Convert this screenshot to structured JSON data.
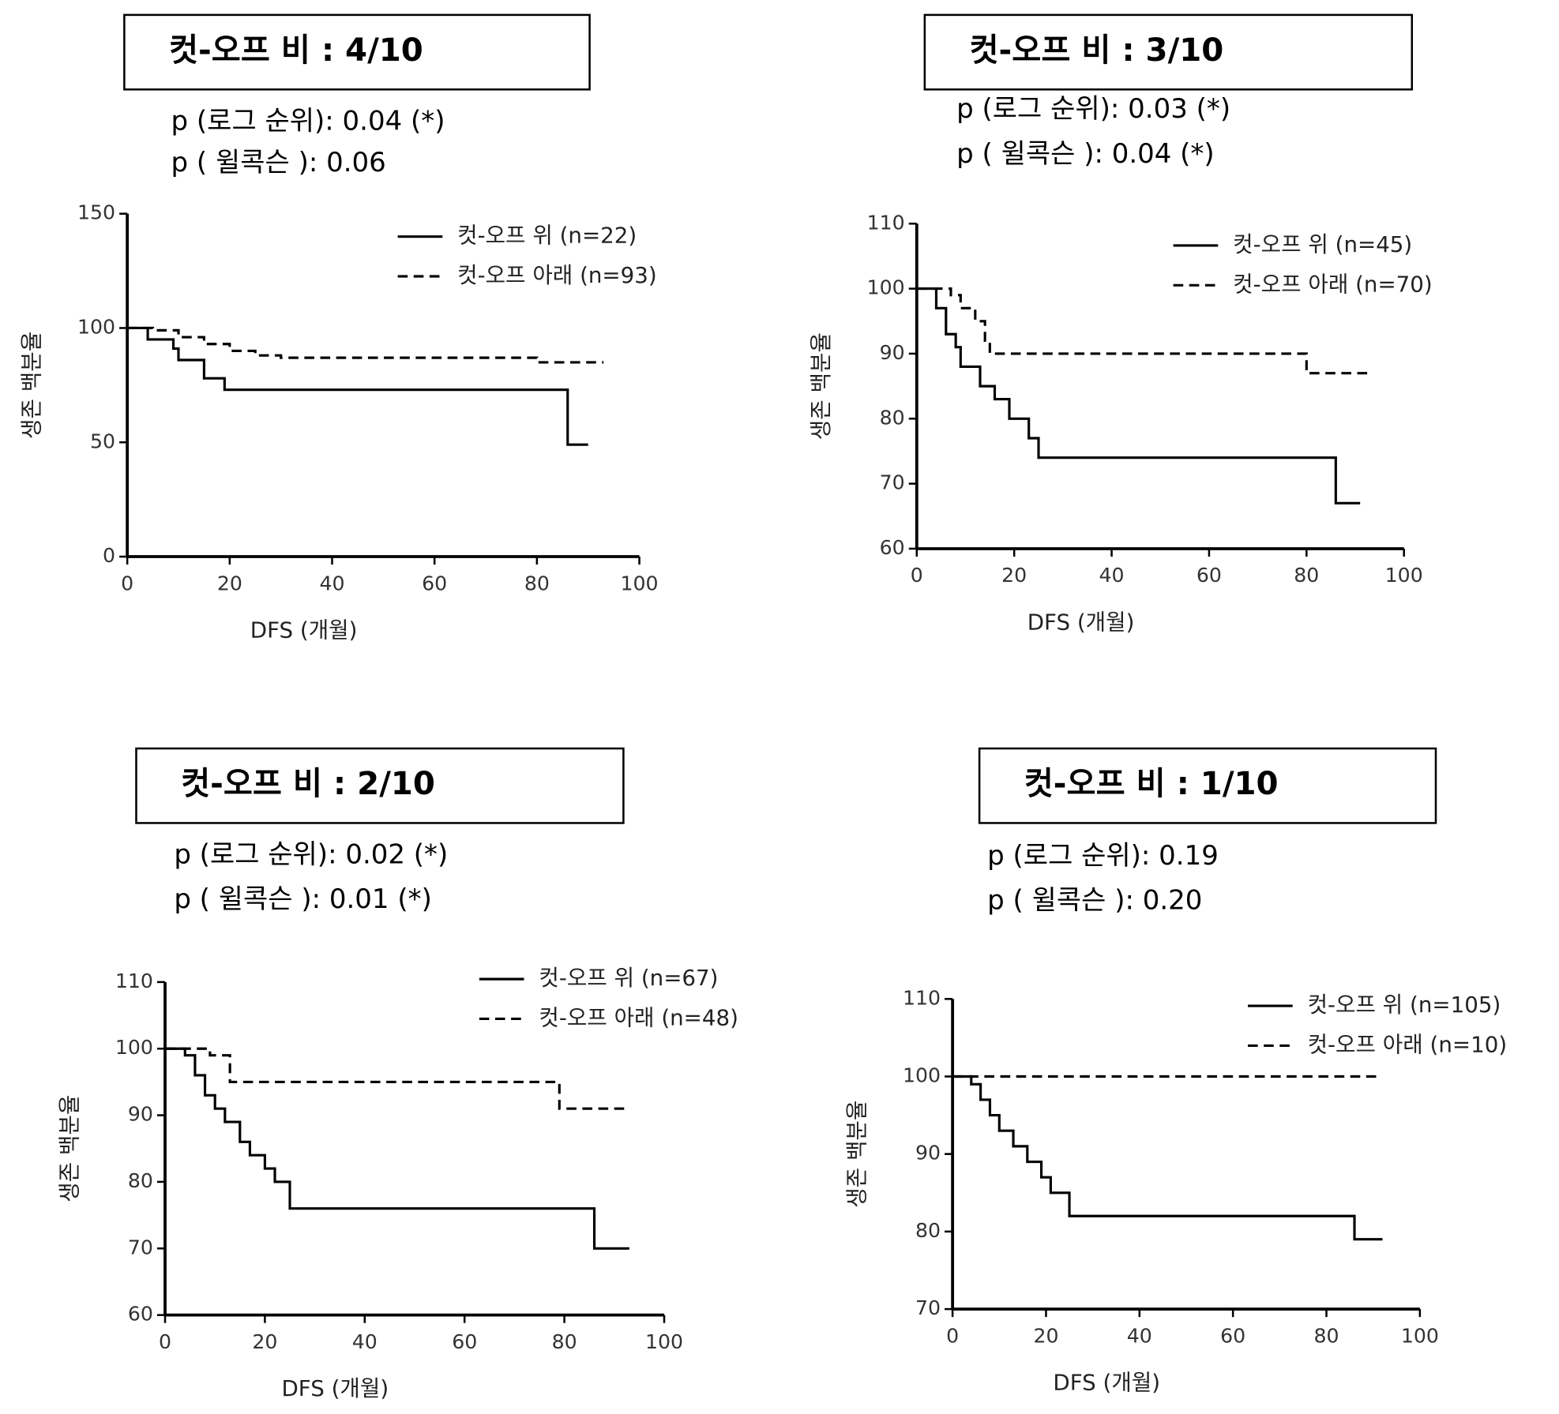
{
  "chart_data": [
    {
      "type": "line",
      "step": true,
      "title": "컷-오프 비 : 4/10",
      "annotations": [
        "p (로그 순위): 0.04 (*)",
        "p ( 윌콕슨 ): 0.06"
      ],
      "x_label": "DFS (개월)",
      "y_label": "생존 백분율",
      "xlim": [
        0,
        100
      ],
      "xticks": [
        0,
        20,
        40,
        60,
        80,
        100
      ],
      "ylim": [
        0,
        150
      ],
      "yticks": [
        0,
        50,
        100,
        150
      ],
      "series": [
        {
          "name": "컷-오프 위 (n=22)",
          "color": "#000000",
          "line_style": "solid",
          "x": [
            0,
            4,
            9,
            10,
            15,
            19,
            86,
            90
          ],
          "values": [
            100,
            95,
            91,
            86,
            78,
            73,
            49,
            49
          ]
        },
        {
          "name": "컷-오프 아래 (n=93)",
          "color": "#000000",
          "line_style": "dashed",
          "x": [
            0,
            5,
            10,
            15,
            20,
            25,
            30,
            80,
            93
          ],
          "values": [
            100,
            99,
            96,
            93,
            90,
            88,
            87,
            85,
            85
          ]
        }
      ]
    },
    {
      "type": "line",
      "step": true,
      "title": "컷-오프 비 : 3/10",
      "annotations": [
        "p (로그 순위): 0.03 (*)",
        "p ( 윌콕슨 ): 0.04 (*)"
      ],
      "x_label": "DFS (개월)",
      "y_label": "생존 백분율",
      "xlim": [
        0,
        100
      ],
      "xticks": [
        0,
        20,
        40,
        60,
        80,
        100
      ],
      "ylim": [
        60,
        110
      ],
      "yticks": [
        60,
        70,
        80,
        90,
        100,
        110
      ],
      "series": [
        {
          "name": "컷-오프 위 (n=45)",
          "color": "#000000",
          "line_style": "solid",
          "x": [
            0,
            4,
            6,
            8,
            9,
            13,
            16,
            19,
            23,
            25,
            86,
            91
          ],
          "values": [
            100,
            97,
            93,
            91,
            88,
            85,
            83,
            80,
            77,
            74,
            67,
            67
          ]
        },
        {
          "name": "컷-오프 아래 (n=70)",
          "color": "#000000",
          "line_style": "dashed",
          "x": [
            0,
            7,
            9,
            12,
            14,
            15,
            80,
            93
          ],
          "values": [
            100,
            99,
            97,
            95,
            92,
            90,
            87,
            87
          ]
        }
      ]
    },
    {
      "type": "line",
      "step": true,
      "title": "컷-오프 비 : 2/10",
      "annotations": [
        "p (로그 순위): 0.02 (*)",
        "p ( 윌콕슨 ): 0.01 (*)"
      ],
      "x_label": "DFS (개월)",
      "y_label": "생존 백분율",
      "xlim": [
        0,
        100
      ],
      "xticks": [
        0,
        20,
        40,
        60,
        80,
        100
      ],
      "ylim": [
        60,
        110
      ],
      "yticks": [
        60,
        70,
        80,
        90,
        100,
        110
      ],
      "series": [
        {
          "name": "컷-오프 위 (n=67)",
          "color": "#000000",
          "line_style": "solid",
          "x": [
            0,
            4,
            6,
            8,
            10,
            12,
            15,
            17,
            20,
            22,
            25,
            86,
            93
          ],
          "values": [
            100,
            99,
            96,
            93,
            91,
            89,
            86,
            84,
            82,
            80,
            76,
            70,
            70
          ]
        },
        {
          "name": "컷-오프 아래 (n=48)",
          "color": "#000000",
          "line_style": "dashed",
          "x": [
            0,
            9,
            13,
            79,
            92
          ],
          "values": [
            100,
            99,
            95,
            91,
            91
          ]
        }
      ]
    },
    {
      "type": "line",
      "step": true,
      "title": "컷-오프 비 : 1/10",
      "annotations": [
        "p (로그 순위): 0.19",
        "p ( 윌콕슨 ): 0.20"
      ],
      "x_label": "DFS (개월)",
      "y_label": "생존 백분율",
      "xlim": [
        0,
        100
      ],
      "xticks": [
        0,
        20,
        40,
        60,
        80,
        100
      ],
      "ylim": [
        70,
        110
      ],
      "yticks": [
        70,
        80,
        90,
        100,
        110
      ],
      "series": [
        {
          "name": "컷-오프 위 (n=105)",
          "color": "#000000",
          "line_style": "solid",
          "x": [
            0,
            4,
            6,
            8,
            10,
            13,
            16,
            19,
            21,
            25,
            86,
            92
          ],
          "values": [
            100,
            99,
            97,
            95,
            93,
            91,
            89,
            87,
            85,
            82,
            79,
            79
          ]
        },
        {
          "name": "컷-오프 아래 (n=10)",
          "color": "#000000",
          "line_style": "dashed",
          "x": [
            0,
            91
          ],
          "values": [
            100,
            100
          ]
        }
      ]
    }
  ]
}
